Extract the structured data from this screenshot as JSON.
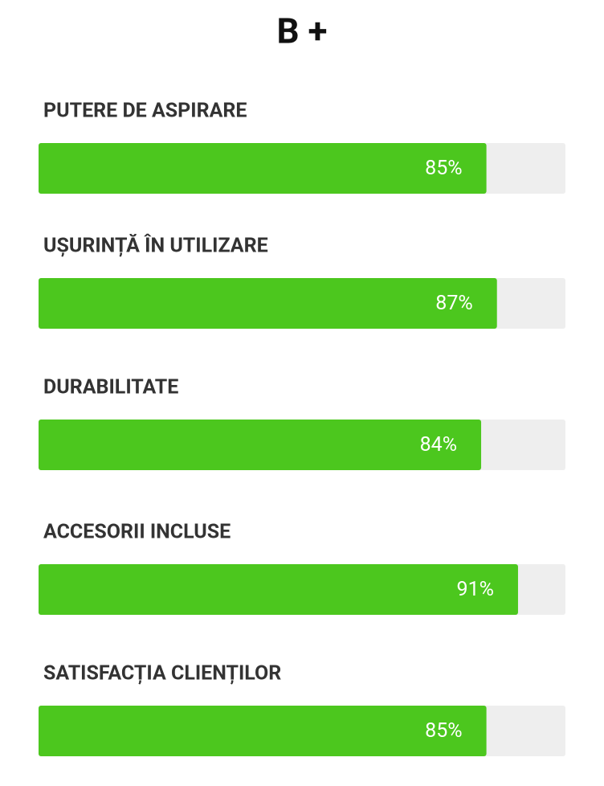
{
  "chart_data": {
    "type": "bar",
    "orientation": "horizontal",
    "title": "B +",
    "categories": [
      "PUTERE DE ASPIRARE",
      "UȘURINȚĂ ÎN UTILIZARE",
      "DURABILITATE",
      "ACCESORII INCLUSE",
      "SATISFACȚIA CLIENȚILOR"
    ],
    "values": [
      85,
      87,
      84,
      91,
      85
    ],
    "value_labels": [
      "85%",
      "87%",
      "84%",
      "91%",
      "85%"
    ],
    "xlim": [
      0,
      100
    ],
    "color": "#4cc71e",
    "track_color": "#eeeeee"
  }
}
